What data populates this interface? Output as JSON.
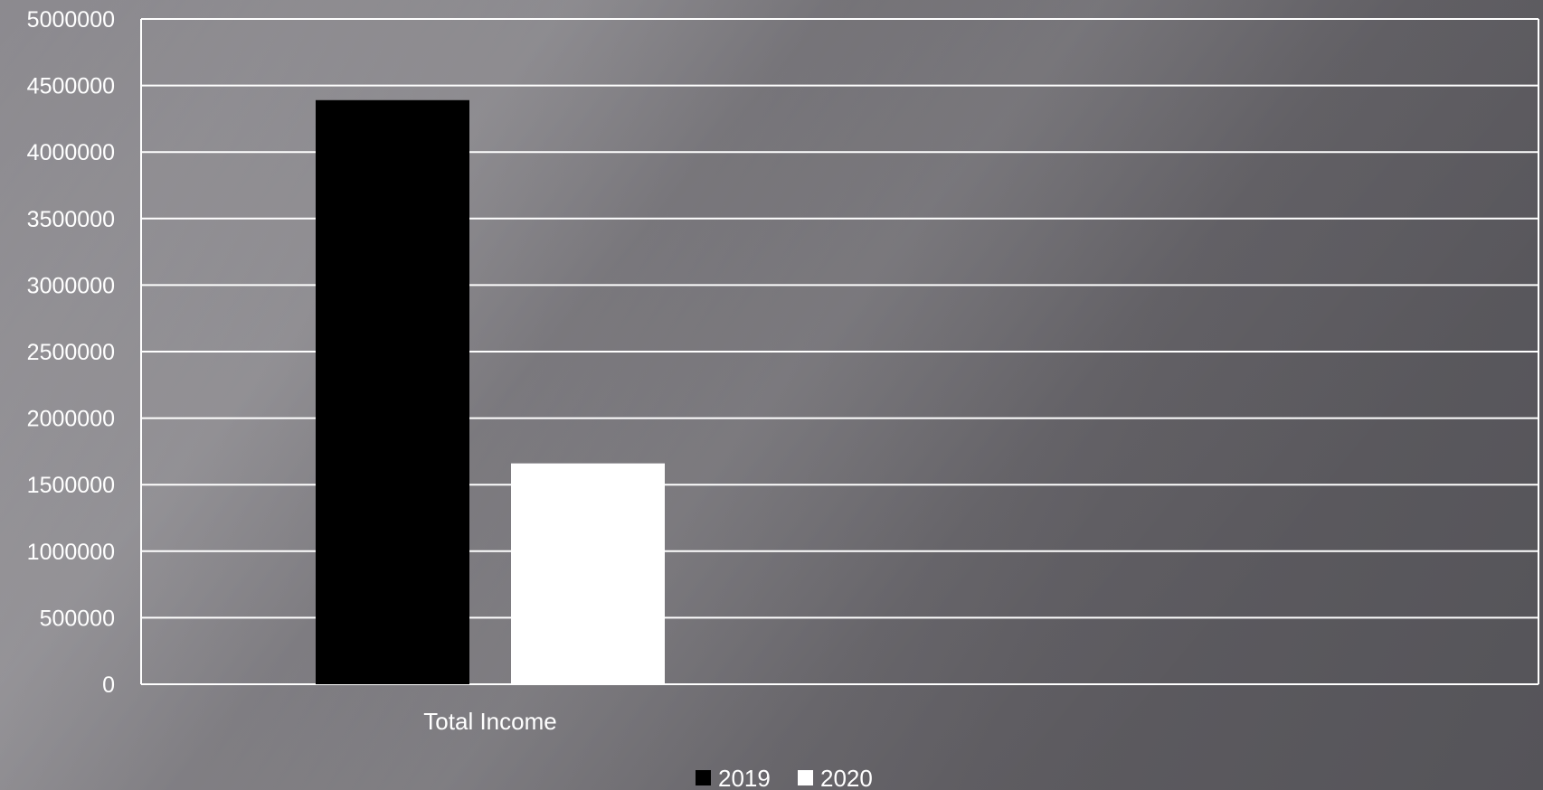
{
  "chart_data": {
    "type": "bar",
    "categories": [
      "Total Income"
    ],
    "series": [
      {
        "name": "2019",
        "values": [
          4390000
        ],
        "color": "#000000"
      },
      {
        "name": "2020",
        "values": [
          1660000
        ],
        "color": "#ffffff"
      }
    ],
    "title": "",
    "xlabel": "",
    "ylabel": "",
    "ylim": [
      0,
      5000000
    ],
    "yticks": [
      "0",
      "500000",
      "1000000",
      "1500000",
      "2000000",
      "2500000",
      "3000000",
      "3500000",
      "4000000",
      "4500000",
      "5000000"
    ],
    "grid": true,
    "legend_position": "bottom",
    "colors": {
      "gridline": "#ffffff",
      "text": "#ffffff"
    }
  }
}
